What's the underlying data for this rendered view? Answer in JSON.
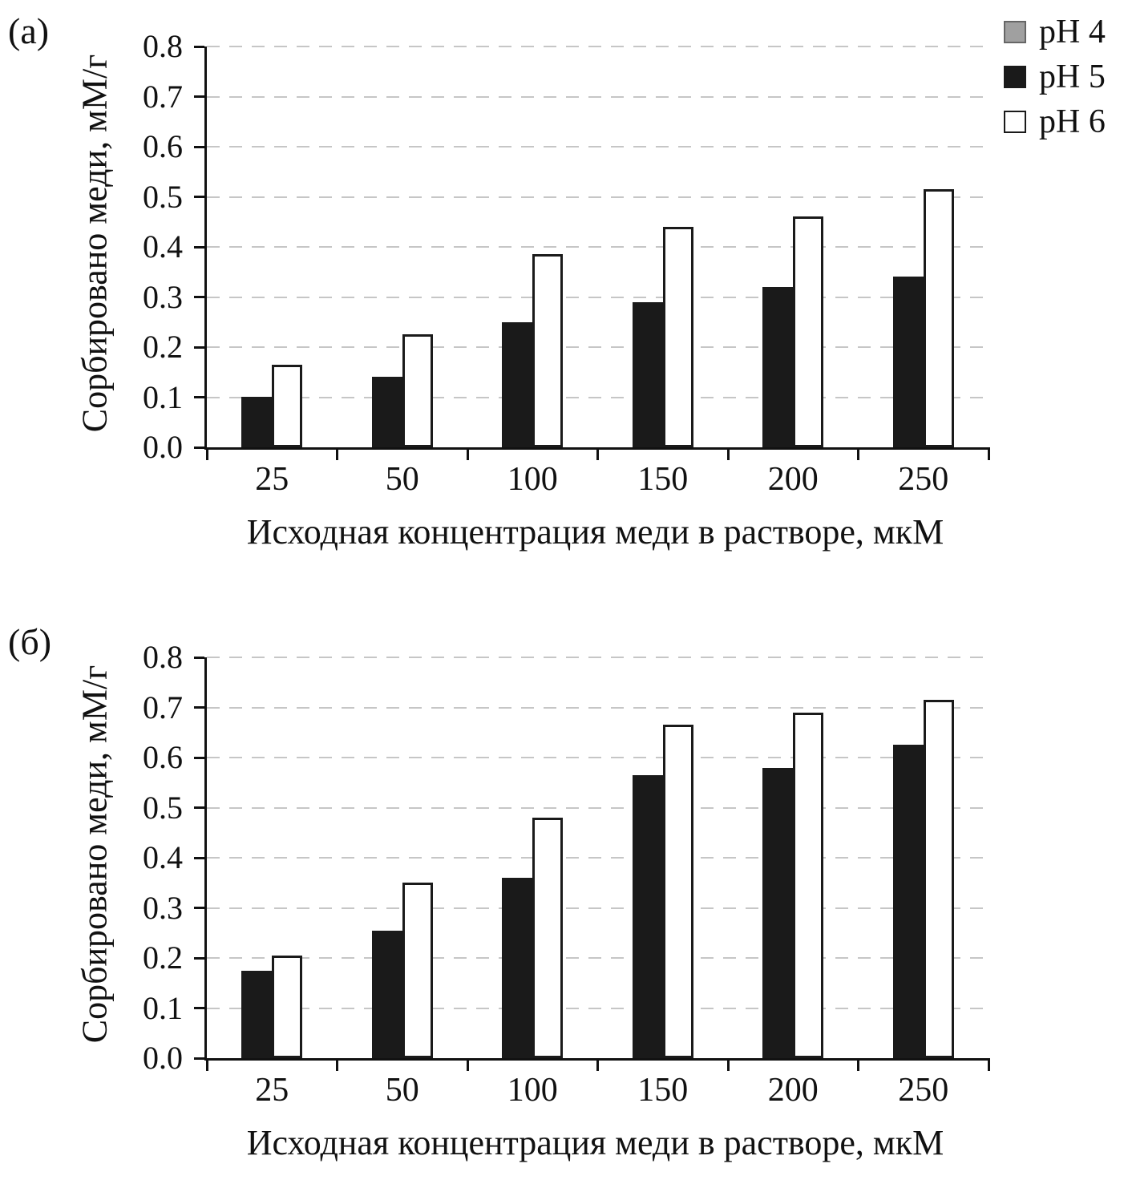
{
  "figure": {
    "background": "#ffffff",
    "text_color": "#111111",
    "grid_color": "#c6c6c6",
    "axis_color": "#111111"
  },
  "legend": {
    "position": "top-right",
    "entries": [
      {
        "label": "pH 4",
        "fill": "#a0a0a0",
        "border": "#666666"
      },
      {
        "label": "pH 5",
        "fill": "#1a1a1a",
        "border": "#1a1a1a"
      },
      {
        "label": "pH 6",
        "fill": "#ffffff",
        "border": "#1a1a1a"
      }
    ]
  },
  "chart_data": [
    {
      "type": "bar",
      "panel_label": "(а)",
      "xlabel": "Исходная концентрация меди в растворе, мкМ",
      "ylabel": "Сорбировано меди, мМ/г",
      "categories": [
        "25",
        "50",
        "100",
        "150",
        "200",
        "250"
      ],
      "series": [
        {
          "name": "pH 4",
          "values": [
            0,
            0,
            0,
            0,
            0,
            0
          ]
        },
        {
          "name": "pH 5",
          "values": [
            0.1,
            0.14,
            0.25,
            0.29,
            0.32,
            0.34
          ]
        },
        {
          "name": "pH 6",
          "values": [
            0.165,
            0.225,
            0.385,
            0.44,
            0.46,
            0.515
          ]
        }
      ],
      "ylim": [
        0,
        0.8
      ],
      "ytick_step": 0.1,
      "ytick_labels": [
        "0.0",
        "0.1",
        "0.2",
        "0.3",
        "0.4",
        "0.5",
        "0.6",
        "0.7",
        "0.8"
      ],
      "grid": "dashed-horizontal",
      "has_legend": true
    },
    {
      "type": "bar",
      "panel_label": "(б)",
      "xlabel": "Исходная концентрация меди в растворе, мкМ",
      "ylabel": "Сорбировано меди, мМ/г",
      "categories": [
        "25",
        "50",
        "100",
        "150",
        "200",
        "250"
      ],
      "series": [
        {
          "name": "pH 4",
          "values": [
            0,
            0,
            0,
            0,
            0,
            0
          ]
        },
        {
          "name": "pH 5",
          "values": [
            0.175,
            0.255,
            0.36,
            0.565,
            0.58,
            0.625
          ]
        },
        {
          "name": "pH 6",
          "values": [
            0.205,
            0.35,
            0.48,
            0.665,
            0.69,
            0.715
          ]
        }
      ],
      "ylim": [
        0,
        0.8
      ],
      "ytick_step": 0.1,
      "ytick_labels": [
        "0.0",
        "0.1",
        "0.2",
        "0.3",
        "0.4",
        "0.5",
        "0.6",
        "0.7",
        "0.8"
      ],
      "grid": "dashed-horizontal",
      "has_legend": false
    }
  ]
}
